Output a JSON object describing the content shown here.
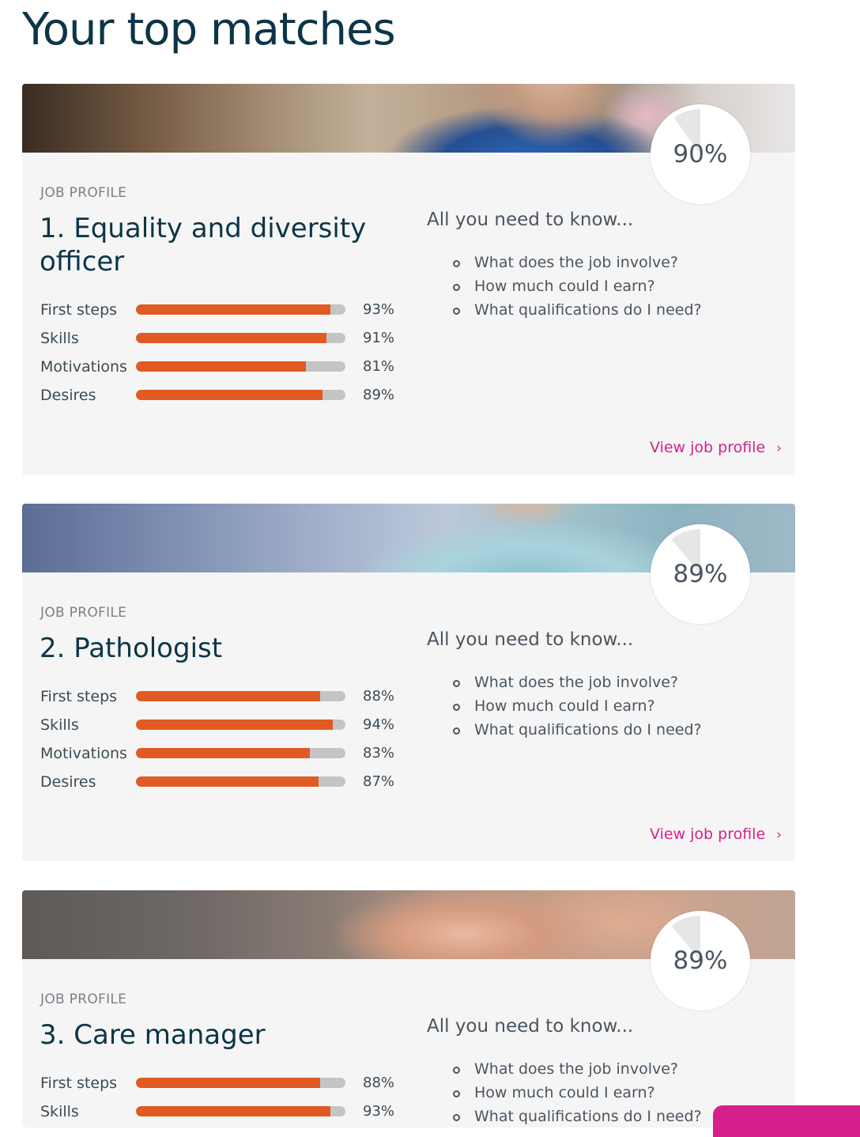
{
  "page": {
    "title": "Your top matches"
  },
  "colors": {
    "title": "#0c3547",
    "bar_fill": "#e05a24",
    "bar_track": "#c4c4c4",
    "link": "#d6218b",
    "card_bg": "#f5f5f5"
  },
  "matches": [
    {
      "kicker": "JOB PROFILE",
      "title": "1. Equality and diversity officer",
      "match_percent": "90%",
      "match_value": 90,
      "scores": [
        {
          "label": "First steps",
          "value": 93,
          "display": "93%"
        },
        {
          "label": "Skills",
          "value": 91,
          "display": "91%"
        },
        {
          "label": "Motivations",
          "value": 81,
          "display": "81%"
        },
        {
          "label": "Desires",
          "value": 89,
          "display": "89%"
        }
      ],
      "know_heading": "All you need to know...",
      "know_items": [
        "What does the job involve?",
        "How much could I earn?",
        "What qualifications do I need?"
      ],
      "link_label": "View job profile",
      "link_icon": "chevron-right-icon"
    },
    {
      "kicker": "JOB PROFILE",
      "title": "2. Pathologist",
      "match_percent": "89%",
      "match_value": 89,
      "scores": [
        {
          "label": "First steps",
          "value": 88,
          "display": "88%"
        },
        {
          "label": "Skills",
          "value": 94,
          "display": "94%"
        },
        {
          "label": "Motivations",
          "value": 83,
          "display": "83%"
        },
        {
          "label": "Desires",
          "value": 87,
          "display": "87%"
        }
      ],
      "know_heading": "All you need to know...",
      "know_items": [
        "What does the job involve?",
        "How much could I earn?",
        "What qualifications do I need?"
      ],
      "link_label": "View job profile",
      "link_icon": "chevron-right-icon"
    },
    {
      "kicker": "JOB PROFILE",
      "title": "3. Care manager",
      "match_percent": "89%",
      "match_value": 89,
      "scores": [
        {
          "label": "First steps",
          "value": 88,
          "display": "88%"
        },
        {
          "label": "Skills",
          "value": 93,
          "display": "93%"
        }
      ],
      "know_heading": "All you need to know...",
      "know_items": [
        "What does the job involve?",
        "How much could I earn?",
        "What qualifications do I need?"
      ]
    }
  ]
}
